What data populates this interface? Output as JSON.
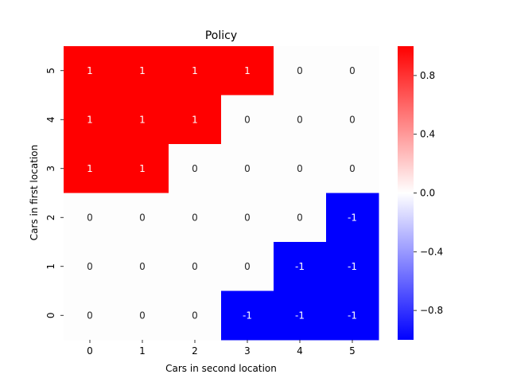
{
  "chart_data": {
    "type": "heatmap",
    "title": "Policy",
    "xlabel": "Cars in second location",
    "ylabel": "Cars in first location",
    "x_categories": [
      "0",
      "1",
      "2",
      "3",
      "4",
      "5"
    ],
    "y_categories": [
      "5",
      "4",
      "3",
      "2",
      "1",
      "0"
    ],
    "values": [
      [
        1,
        1,
        1,
        1,
        0,
        0
      ],
      [
        1,
        1,
        1,
        0,
        0,
        0
      ],
      [
        1,
        1,
        0,
        0,
        0,
        0
      ],
      [
        0,
        0,
        0,
        0,
        0,
        -1
      ],
      [
        0,
        0,
        0,
        0,
        -1,
        -1
      ],
      [
        0,
        0,
        0,
        -1,
        -1,
        -1
      ]
    ],
    "value_range": [
      -1,
      1
    ],
    "colormap": "bwr",
    "colors": {
      "negative": "#0000ff",
      "zero": "#ffffff",
      "positive": "#ff0000"
    },
    "colorbar": {
      "ticks": [
        -0.8,
        -0.4,
        0.0,
        0.4,
        0.8
      ],
      "tick_labels": [
        "−0.8",
        "−0.4",
        "0.0",
        "0.4",
        "0.8"
      ]
    }
  }
}
